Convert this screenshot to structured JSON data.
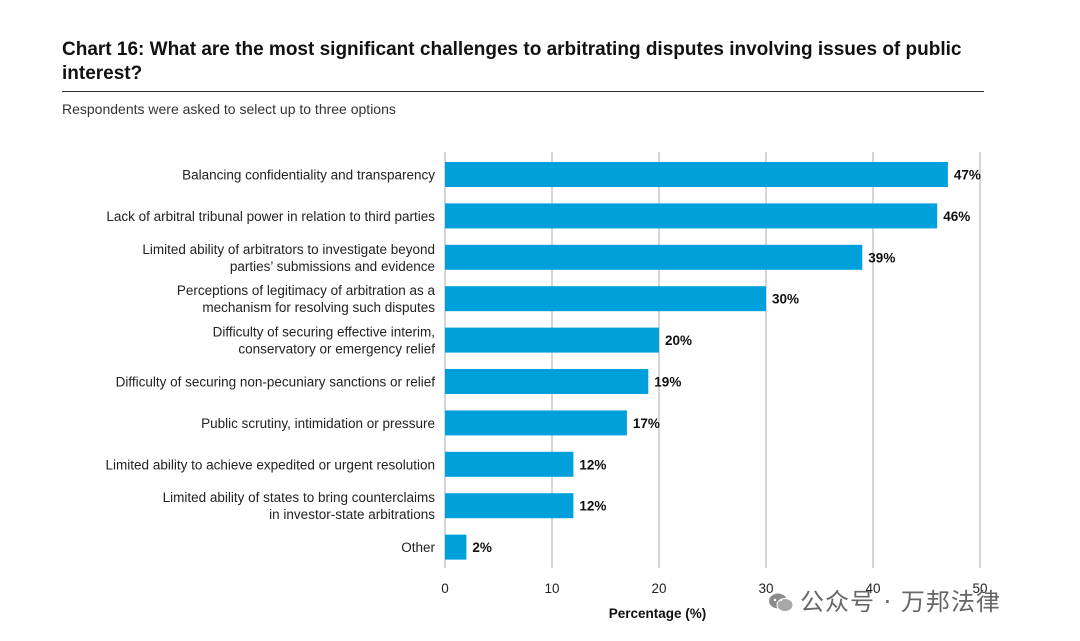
{
  "chart_data": {
    "type": "bar",
    "orientation": "horizontal",
    "title": "Chart 16: What are the most significant challenges to arbitrating disputes involving issues of public interest?",
    "subtitle": "Respondents were asked to select up to three options",
    "categories": [
      [
        "Balancing confidentiality and transparency"
      ],
      [
        "Lack of arbitral tribunal power in relation to third parties"
      ],
      [
        "Limited ability of arbitrators to investigate beyond",
        "parties’ submissions and evidence"
      ],
      [
        "Perceptions of legitimacy of arbitration as a",
        "mechanism for resolving such disputes"
      ],
      [
        "Difficulty of securing effective interim,",
        "conservatory or emergency relief"
      ],
      [
        "Difficulty of securing non-pecuniary sanctions or relief"
      ],
      [
        "Public scrutiny, intimidation or pressure"
      ],
      [
        "Limited ability to achieve expedited or urgent resolution"
      ],
      [
        "Limited ability of states to bring counterclaims",
        "in investor-state arbitrations"
      ],
      [
        "Other"
      ]
    ],
    "values": [
      47,
      46,
      39,
      30,
      20,
      19,
      17,
      12,
      12,
      2
    ],
    "value_labels": [
      "47%",
      "46%",
      "39%",
      "30%",
      "20%",
      "19%",
      "17%",
      "12%",
      "12%",
      "2%"
    ],
    "xlabel": "Percentage (%)",
    "xlim": [
      0,
      50
    ],
    "xticks": [
      0,
      10,
      20,
      30,
      40,
      50
    ],
    "grid": true,
    "bar_color": "#00a0dc"
  },
  "watermark": "公众号 · 万邦法律"
}
